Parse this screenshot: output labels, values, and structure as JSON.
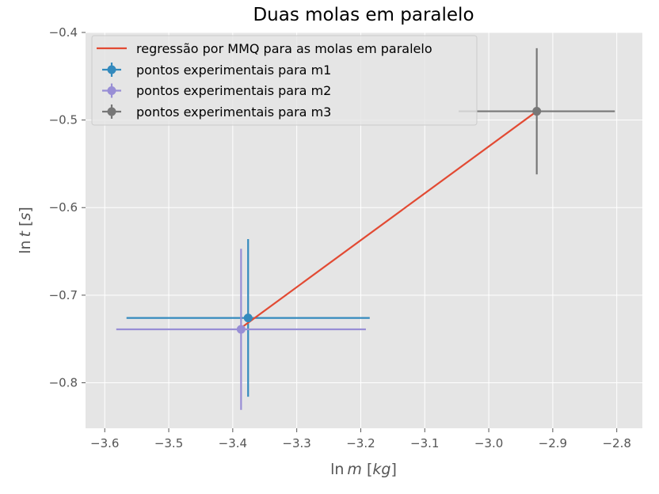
{
  "chart_data": {
    "type": "scatter",
    "title": "Duas molas em paralelo",
    "xlabel": "ln m [kg]",
    "ylabel": "ln t [s]",
    "xlim": [
      -3.63,
      -2.76
    ],
    "ylim": [
      -0.852,
      -0.4
    ],
    "xticks": [
      -3.6,
      -3.5,
      -3.4,
      -3.3,
      -3.2,
      -3.1,
      -3.0,
      -2.9,
      -2.8
    ],
    "yticks": [
      -0.4,
      -0.5,
      -0.6,
      -0.7,
      -0.8
    ],
    "grid": true,
    "legend_position": "top-left",
    "series": [
      {
        "name": "regressão por MMQ para as molas em paralelo",
        "kind": "line",
        "color": "#E24A33",
        "x": [
          -3.39,
          -2.925
        ],
        "y": [
          -0.739,
          -0.49
        ]
      },
      {
        "name": "pontos experimentais para m1",
        "kind": "errorbar",
        "color": "#348ABD",
        "x": [
          -3.376
        ],
        "y": [
          -0.726
        ],
        "xerr": [
          0.19
        ],
        "yerr": [
          0.09
        ]
      },
      {
        "name": "pontos experimentais para m2",
        "kind": "errorbar",
        "color": "#988ED5",
        "x": [
          -3.387
        ],
        "y": [
          -0.739
        ],
        "xerr": [
          0.195
        ],
        "yerr": [
          0.092
        ]
      },
      {
        "name": "pontos experimentais para m3",
        "kind": "errorbar",
        "color": "#777777",
        "x": [
          -2.925
        ],
        "y": [
          -0.49
        ],
        "xerr": [
          0.122
        ],
        "yerr": [
          0.072
        ]
      }
    ]
  }
}
